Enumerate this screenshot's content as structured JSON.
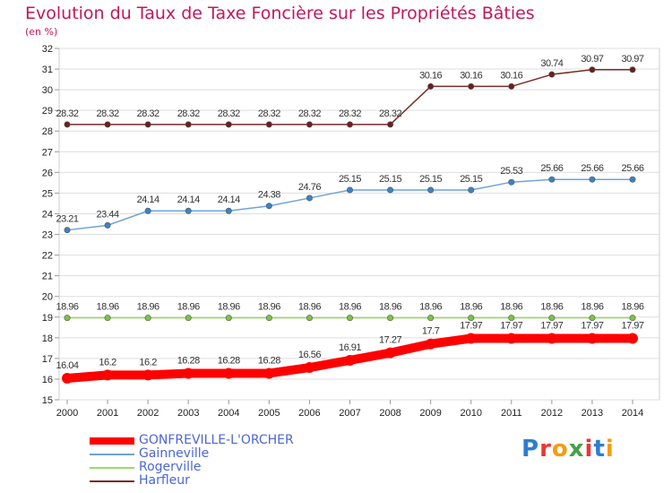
{
  "title": "Evolution du Taux de Taxe Foncière sur les Propriétés Bâties",
  "subtitle": "(en %)",
  "logo": {
    "letters": [
      "P",
      "r",
      "o",
      "x",
      "i",
      "t",
      "i"
    ],
    "colors": [
      "#2e7dd1",
      "#e53935",
      "#f39c12",
      "#43a047",
      "#e53935",
      "#2e7dd1",
      "#f39c12"
    ]
  },
  "chart_data": {
    "type": "line",
    "title": "Evolution du Taux de Taxe Foncière sur les Propriétés Bâties",
    "ylabel": "(en %)",
    "x": [
      "2000",
      "2001",
      "2002",
      "2003",
      "2004",
      "2005",
      "2006",
      "2007",
      "2008",
      "2009",
      "2010",
      "2011",
      "2012",
      "2013",
      "2014"
    ],
    "ylim": [
      15,
      32
    ],
    "yticks": [
      15,
      16,
      17,
      18,
      19,
      20,
      21,
      22,
      23,
      24,
      25,
      26,
      27,
      28,
      29,
      30,
      31,
      32
    ],
    "grid": "horizontal",
    "legend_position": "bottom-left",
    "series": [
      {
        "name": "GONFREVILLE-L'ORCHER",
        "color": "#ff0000",
        "marker_color": "#ff0000",
        "values": [
          16.04,
          16.2,
          16.2,
          16.28,
          16.28,
          16.28,
          16.56,
          16.91,
          17.27,
          17.7,
          17.97,
          17.97,
          17.97,
          17.97,
          17.97
        ],
        "labels": [
          "16.04",
          "16.2",
          "16.2",
          "16.28",
          "16.28",
          "16.28",
          "16.56",
          "16.91",
          "17.27",
          "17.7",
          "17.97",
          "17.97",
          "17.97",
          "17.97",
          "17.97"
        ]
      },
      {
        "name": "Gainneville",
        "color": "#6fa3d8",
        "marker_color": "#3b82c4",
        "values": [
          23.21,
          23.44,
          24.14,
          24.14,
          24.14,
          24.38,
          24.76,
          25.15,
          25.15,
          25.15,
          25.15,
          25.53,
          25.66,
          25.66,
          25.66
        ],
        "labels": [
          "23.21",
          "23.44",
          "24.14",
          "24.14",
          "24.14",
          "24.38",
          "24.76",
          "25.15",
          "25.15",
          "25.15",
          "25.15",
          "25.53",
          "25.66",
          "25.66",
          "25.66"
        ]
      },
      {
        "name": "Rogerville",
        "color": "#9ed86a",
        "marker_color": "#7cc343",
        "values": [
          18.96,
          18.96,
          18.96,
          18.96,
          18.96,
          18.96,
          18.96,
          18.96,
          18.96,
          18.96,
          18.96,
          18.96,
          18.96,
          18.96,
          18.96
        ],
        "labels": [
          "18.96",
          "18.96",
          "18.96",
          "18.96",
          "18.96",
          "18.96",
          "18.96",
          "18.96",
          "18.96",
          "18.96",
          "18.96",
          "18.96",
          "18.96",
          "18.96",
          "18.96"
        ]
      },
      {
        "name": "Harfleur",
        "color": "#7a2a2a",
        "marker_color": "#6b1f1f",
        "values": [
          28.32,
          28.32,
          28.32,
          28.32,
          28.32,
          28.32,
          28.32,
          28.32,
          28.32,
          30.16,
          30.16,
          30.16,
          30.74,
          30.97,
          30.97
        ],
        "labels": [
          "28.32",
          "28.32",
          "28.32",
          "28.32",
          "28.32",
          "28.32",
          "28.32",
          "28.32",
          "28.32",
          "30.16",
          "30.16",
          "30.16",
          "30.74",
          "30.97",
          "30.97"
        ]
      }
    ]
  }
}
